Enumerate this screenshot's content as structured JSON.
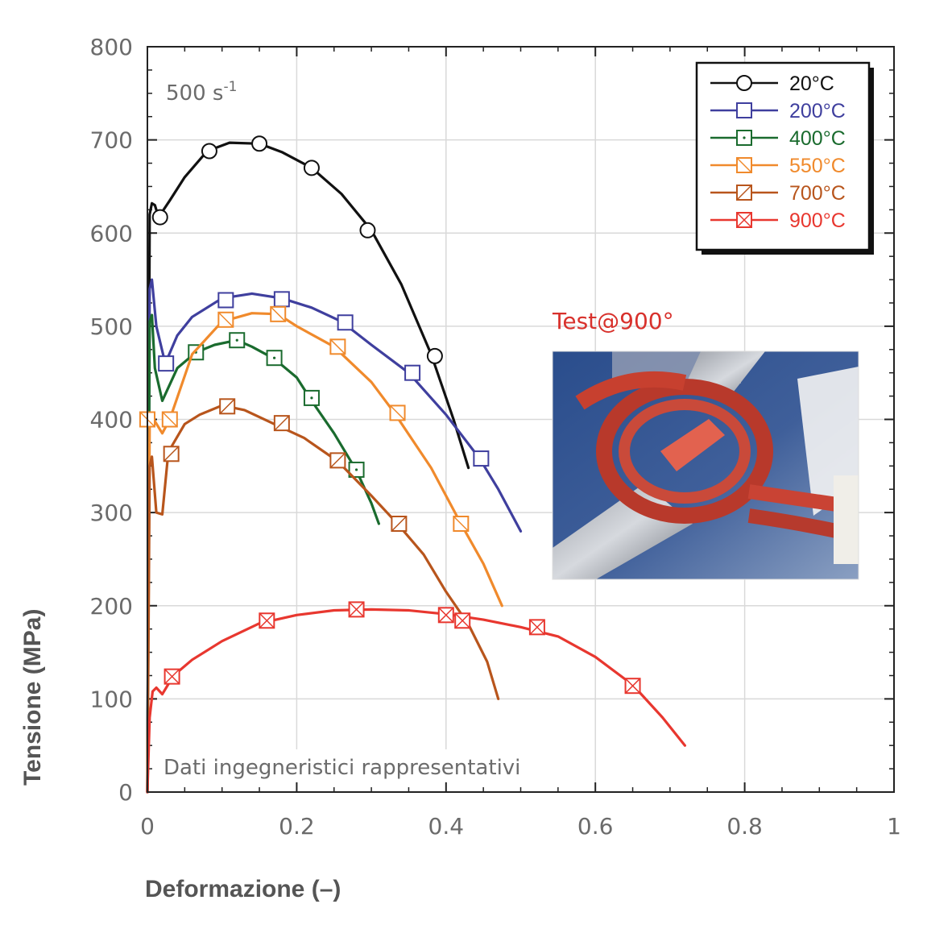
{
  "chart_data": {
    "type": "line",
    "xlabel": "Deformazione (–)",
    "ylabel": "Tensione (MPa)",
    "xlim": [
      0,
      1
    ],
    "ylim": [
      0,
      800
    ],
    "x_ticks": [
      "0",
      "0.2",
      "0.4",
      "0.6",
      "0.8",
      "1"
    ],
    "y_ticks": [
      "0",
      "100",
      "200",
      "300",
      "400",
      "500",
      "600",
      "700",
      "800"
    ],
    "grid": true,
    "legend_position": "top-right",
    "annotations": {
      "strain_rate": "500 s",
      "strain_rate_exp": "-1",
      "note": "Dati ingegneristici rappresentativi",
      "inset_title": "Test@900°"
    },
    "series": [
      {
        "name": "20°C",
        "color": "#111111",
        "marker": "circle",
        "x": [
          0,
          0.003,
          0.006,
          0.01,
          0.015,
          0.03,
          0.05,
          0.08,
          0.11,
          0.15,
          0.18,
          0.22,
          0.26,
          0.3,
          0.34,
          0.38,
          0.41,
          0.43
        ],
        "y": [
          0,
          620,
          632,
          630,
          617,
          635,
          660,
          688,
          697,
          696,
          687,
          670,
          642,
          603,
          545,
          470,
          400,
          348
        ],
        "markers_x": [
          0.017,
          0.083,
          0.15,
          0.22,
          0.295,
          0.385
        ],
        "markers_y": [
          617,
          688,
          696,
          670,
          603,
          468
        ]
      },
      {
        "name": "200°C",
        "color": "#3f3f9e",
        "marker": "square",
        "x": [
          0,
          0.003,
          0.006,
          0.012,
          0.024,
          0.04,
          0.06,
          0.1,
          0.14,
          0.18,
          0.22,
          0.26,
          0.3,
          0.35,
          0.4,
          0.445,
          0.47,
          0.5
        ],
        "y": [
          0,
          540,
          550,
          500,
          460,
          490,
          510,
          530,
          535,
          530,
          520,
          505,
          480,
          450,
          405,
          358,
          325,
          280
        ],
        "markers_x": [
          0.025,
          0.105,
          0.18,
          0.265,
          0.355,
          0.447
        ],
        "markers_y": [
          460,
          528,
          529,
          504,
          450,
          358
        ]
      },
      {
        "name": "400°C",
        "color": "#1a6b2e",
        "marker": "square-dot",
        "x": [
          0,
          0.003,
          0.006,
          0.01,
          0.02,
          0.04,
          0.065,
          0.09,
          0.12,
          0.14,
          0.17,
          0.2,
          0.22,
          0.25,
          0.28,
          0.3,
          0.31
        ],
        "y": [
          0,
          505,
          512,
          455,
          420,
          455,
          472,
          480,
          485,
          478,
          465,
          445,
          420,
          385,
          345,
          310,
          288
        ],
        "markers_x": [
          0.065,
          0.12,
          0.17,
          0.22,
          0.28
        ],
        "markers_y": [
          472,
          485,
          466,
          423,
          346
        ]
      },
      {
        "name": "550°C",
        "color": "#f08a2c",
        "marker": "square-diag-back",
        "x": [
          0,
          0.003,
          0.006,
          0.01,
          0.02,
          0.03,
          0.06,
          0.1,
          0.14,
          0.175,
          0.2,
          0.25,
          0.3,
          0.33,
          0.38,
          0.42,
          0.45,
          0.475
        ],
        "y": [
          0,
          395,
          400,
          398,
          385,
          400,
          470,
          505,
          514,
          513,
          500,
          478,
          440,
          408,
          348,
          288,
          245,
          200
        ],
        "markers_x": [
          0.0,
          0.03,
          0.105,
          0.175,
          0.255,
          0.335,
          0.42
        ],
        "markers_y": [
          400,
          400,
          507,
          513,
          478,
          407,
          288
        ]
      },
      {
        "name": "700°C",
        "color": "#b8551c",
        "marker": "square-diag-fwd",
        "x": [
          0,
          0.003,
          0.006,
          0.012,
          0.02,
          0.028,
          0.05,
          0.07,
          0.1,
          0.13,
          0.17,
          0.21,
          0.255,
          0.3,
          0.335,
          0.37,
          0.4,
          0.43,
          0.455,
          0.47
        ],
        "y": [
          0,
          350,
          360,
          300,
          298,
          365,
          395,
          405,
          415,
          410,
          395,
          380,
          355,
          318,
          288,
          255,
          215,
          180,
          140,
          100
        ],
        "markers_x": [
          0.032,
          0.107,
          0.18,
          0.255,
          0.337
        ],
        "markers_y": [
          363,
          414,
          396,
          356,
          288
        ]
      },
      {
        "name": "900°C",
        "color": "#e8372f",
        "marker": "square-x",
        "x": [
          0,
          0.003,
          0.007,
          0.012,
          0.02,
          0.035,
          0.06,
          0.1,
          0.15,
          0.2,
          0.25,
          0.3,
          0.35,
          0.4,
          0.45,
          0.5,
          0.55,
          0.6,
          0.65,
          0.69,
          0.72
        ],
        "y": [
          0,
          80,
          108,
          112,
          105,
          125,
          142,
          162,
          181,
          190,
          195,
          196,
          195,
          191,
          185,
          177,
          167,
          145,
          115,
          80,
          50
        ],
        "markers_x": [
          0.033,
          0.16,
          0.28,
          0.4,
          0.422,
          0.522,
          0.65
        ],
        "markers_y": [
          124,
          184,
          196,
          190,
          184,
          177,
          114
        ]
      }
    ]
  }
}
